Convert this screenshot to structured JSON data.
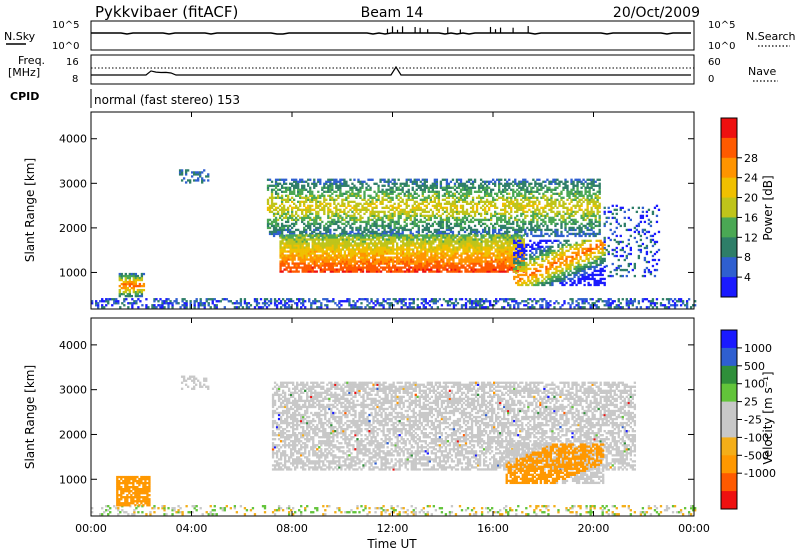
{
  "header": {
    "station": "Pykkvibaer (fitACF)",
    "beam": "Beam 14",
    "date": "20/Oct/2009"
  },
  "status": {
    "nsky_label": "N.Sky",
    "nsky_ticks": [
      "10^5",
      "10^0"
    ],
    "nsearch_label": "N.Search",
    "nsearch_ticks": [
      "10^5",
      "10^0"
    ],
    "freq_label": "Freq.",
    "freq_unit": "[MHz]",
    "freq_ticks": [
      "16",
      "8"
    ],
    "nave_label": "Nave",
    "nave_ticks": [
      "60",
      "0"
    ],
    "cpid_label": "CPID",
    "cpid_value": "normal (fast stereo) 153"
  },
  "colors": {
    "power_scale": [
      "#1a1aff",
      "#2f5fd0",
      "#2e7e68",
      "#4aa854",
      "#bfc41a",
      "#f0c000",
      "#ff9400",
      "#ff5a00",
      "#ee1010"
    ],
    "velocity_scale": [
      "#ee1010",
      "#ff5a00",
      "#ff9800",
      "#f4ae18",
      "#c8c8c8",
      "#c8c8c8",
      "#62c43a",
      "#2f8f3a",
      "#2f5fd0",
      "#1a1aff"
    ]
  },
  "chart_data": [
    {
      "type": "heatmap",
      "name": "power",
      "ylabel": "Slant Range [km]",
      "xlabel": "",
      "x_ticks": [
        "00:00",
        "04:00",
        "08:00",
        "12:00",
        "16:00",
        "20:00",
        "00:00"
      ],
      "y_ticks": [
        1000,
        2000,
        3000,
        4000
      ],
      "xlim": [
        0,
        24
      ],
      "ylim": [
        180,
        4600
      ],
      "colorbar": {
        "label": "Power [dB]",
        "ticks": [
          4,
          8,
          12,
          16,
          20,
          24,
          28
        ]
      },
      "regions": [
        {
          "label": "E-region echo",
          "t0": 1.3,
          "t1": 2.0,
          "r0": 500,
          "r1": 900,
          "peak_db": 28
        },
        {
          "label": "main F-region band",
          "t0": 7.5,
          "t1": 17.0,
          "r0": 1050,
          "r1": 1650,
          "peak_db": 28
        },
        {
          "label": "upper band",
          "t0": 7.0,
          "t1": 20.2,
          "r0": 2200,
          "r1": 2800,
          "peak_db": 18
        },
        {
          "label": "late band",
          "t0": 16.8,
          "t1": 20.3,
          "r0": 700,
          "r1": 1700,
          "peak_db": 28
        },
        {
          "label": "scattered echoes",
          "t0": 3.5,
          "t1": 4.7,
          "r0": 3000,
          "r1": 3300,
          "peak_db": 8
        },
        {
          "label": "near-range clutter",
          "t0": 0.0,
          "t1": 24.0,
          "r0": 180,
          "r1": 450,
          "peak_db": 8
        }
      ]
    },
    {
      "type": "heatmap",
      "name": "velocity",
      "ylabel": "Slant Range [km]",
      "xlabel": "Time UT",
      "x_ticks": [
        "00:00",
        "04:00",
        "08:00",
        "12:00",
        "16:00",
        "20:00",
        "00:00"
      ],
      "y_ticks": [
        1000,
        2000,
        3000,
        4000
      ],
      "xlim": [
        0,
        24
      ],
      "ylim": [
        180,
        4600
      ],
      "colorbar": {
        "label": "Velocity [m s⁻¹]",
        "ticks": [
          1000,
          500,
          100,
          25,
          -25,
          -100,
          -500,
          -1000
        ]
      },
      "regions": [
        {
          "label": "E-region echo",
          "t0": 1.0,
          "t1": 2.3,
          "r0": 400,
          "r1": 1050,
          "velocity": -300
        },
        {
          "label": "main band",
          "t0": 7.5,
          "t1": 20.0,
          "r0": 1200,
          "r1": 3000,
          "velocity": 0
        },
        {
          "label": "late band",
          "t0": 16.5,
          "t1": 20.4,
          "r0": 900,
          "r1": 1800,
          "velocity": -300
        }
      ]
    }
  ]
}
